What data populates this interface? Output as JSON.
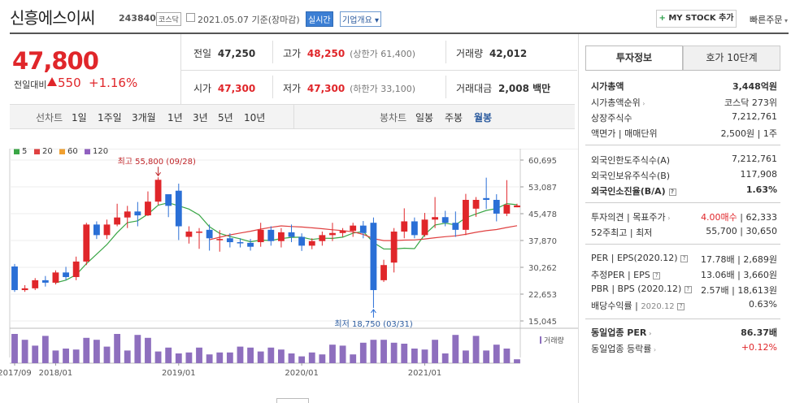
{
  "header": {
    "title": "신흥에스이씨",
    "code": "243840",
    "market": "코스닥",
    "date_text": "2021.05.07  기준(장마감)",
    "realtime": "실시간",
    "company_overview": "기업개요",
    "mystock": "MY STOCK 추가",
    "quick_order": "빠른주문"
  },
  "price": {
    "current": "47,800",
    "change_label": "전일대비",
    "change": "550",
    "change_pct": "+1.16%"
  },
  "stats": {
    "prev_label": "전일",
    "prev": "47,250",
    "high_label": "고가",
    "high": "48,250",
    "upper_limit": "(상한가 61,400)",
    "volume_label": "거래량",
    "volume": "42,012",
    "open_label": "시가",
    "open": "47,300",
    "low_label": "저가",
    "low": "47,300",
    "lower_limit": "(하한가 33,100)",
    "amount_label": "거래대금",
    "amount": "2,008 백만"
  },
  "period": {
    "line_label": "선차트",
    "line_opts": [
      "1일",
      "1주일",
      "3개월",
      "1년",
      "3년",
      "5년",
      "10년"
    ],
    "candle_label": "봉차트",
    "candle_opts": [
      "일봉",
      "주봉",
      "월봉"
    ]
  },
  "tabs": {
    "invest": "투자정보",
    "hoga": "호가 10단계"
  },
  "invest": {
    "mktcap_label": "시가총액",
    "mktcap": "3,448억원",
    "mktcap_rank_label": "시가총액순위",
    "mktcap_rank": "코스닥 273위",
    "shares_label": "상장주식수",
    "shares": "7,212,761",
    "par_label": "액면가",
    "unit_label": "매매단위",
    "par_unit": "2,500원 | 1주",
    "foreign_limit_label": "외국인한도주식수(A)",
    "foreign_limit": "7,212,761",
    "foreign_hold_label": "외국인보유주식수(B)",
    "foreign_hold": "117,908",
    "foreign_ratio_label": "외국인소진율(B/A)",
    "foreign_ratio": "1.63%",
    "opinion_label": "투자의견",
    "target_label": "목표주가",
    "opinion": "4.00매수",
    "target": "62,333",
    "w52_label": "52주최고",
    "w52_low_label": "최저",
    "w52_high": "55,700",
    "w52_low": "30,650",
    "per_label": "PER",
    "eps_label": "EPS(2020.12)",
    "per": "17.78배",
    "eps": "2,689원",
    "fper_label": "추정PER",
    "feps_label": "EPS",
    "fper": "13.06배",
    "feps": "3,660원",
    "pbr_label": "PBR",
    "bps_label": "BPS (2020.12)",
    "pbr": "2.57배",
    "bps": "18,613원",
    "div_label": "배당수익률",
    "div_date": "2020.12",
    "div": "0.63%",
    "sector_per_label": "동일업종 PER",
    "sector_per": "86.37배",
    "sector_chg_label": "동일업종 등락률",
    "sector_chg": "+0.12%"
  },
  "chart_data": {
    "type": "candlestick",
    "period": "월봉",
    "y_ticks": [
      60695,
      53087,
      45478,
      37870,
      30262,
      22653,
      15045
    ],
    "ylim": [
      15045,
      60695
    ],
    "x_labels": [
      "2017/09",
      "2018/01",
      "2019/01",
      "2020/01",
      "2021/01"
    ],
    "ma_legend": [
      {
        "name": "5",
        "color": "#3aa646"
      },
      {
        "name": "20",
        "color": "#e04040"
      },
      {
        "name": "60",
        "color": "#f0a030"
      },
      {
        "name": "120",
        "color": "#9060c0"
      }
    ],
    "high_annotation": "최고 55,800 (09/28)",
    "low_annotation": "최저 18,750 (03/31)",
    "volume_label": "거래량",
    "candles": [
      [
        30500,
        23800,
        31200,
        23300
      ],
      [
        23800,
        24300,
        25200,
        23300
      ],
      [
        24300,
        26600,
        27200,
        23800
      ],
      [
        26600,
        25900,
        27800,
        24800
      ],
      [
        25900,
        28800,
        29400,
        25400
      ],
      [
        28800,
        27500,
        30400,
        26600
      ],
      [
        27500,
        31900,
        33300,
        26600
      ],
      [
        31900,
        42400,
        42900,
        30900
      ],
      [
        42400,
        39400,
        43300,
        38300
      ],
      [
        39400,
        42400,
        43800,
        38300
      ],
      [
        42400,
        44400,
        48300,
        41900
      ],
      [
        44400,
        46100,
        47700,
        41400
      ],
      [
        46100,
        45000,
        48800,
        41900
      ],
      [
        45000,
        48900,
        51800,
        44800
      ],
      [
        48900,
        55100,
        55800,
        48000
      ],
      [
        51000,
        47700,
        50400,
        44500
      ],
      [
        52000,
        41900,
        54000,
        38000
      ],
      [
        38900,
        40400,
        41900,
        37000
      ],
      [
        40400,
        40400,
        41400,
        35500
      ],
      [
        40900,
        38500,
        42400,
        35000
      ],
      [
        38000,
        38300,
        40800,
        34700
      ],
      [
        38500,
        37400,
        39900,
        35900
      ],
      [
        37400,
        37200,
        38500,
        35900
      ],
      [
        37200,
        36100,
        38300,
        35000
      ],
      [
        37400,
        40900,
        42900,
        36100
      ],
      [
        40900,
        37700,
        41900,
        36400
      ],
      [
        37700,
        40200,
        41400,
        35900
      ],
      [
        40200,
        38900,
        42400,
        37400
      ],
      [
        38900,
        36400,
        39900,
        34900
      ],
      [
        36400,
        37700,
        38500,
        35400
      ],
      [
        37700,
        39400,
        40400,
        36400
      ],
      [
        39400,
        40000,
        42900,
        37700
      ],
      [
        40000,
        40600,
        41400,
        38900
      ],
      [
        40600,
        42100,
        42900,
        38900
      ],
      [
        42100,
        40000,
        43400,
        38500
      ],
      [
        42900,
        23800,
        44400,
        18750
      ],
      [
        26600,
        30900,
        32400,
        26100
      ],
      [
        31600,
        40400,
        41400,
        28800
      ],
      [
        40400,
        43300,
        47000,
        38500
      ],
      [
        43300,
        39400,
        44400,
        38500
      ],
      [
        39400,
        43800,
        45700,
        38900
      ],
      [
        43800,
        44500,
        50200,
        41400
      ],
      [
        44500,
        42900,
        46300,
        41900
      ],
      [
        42900,
        40900,
        46100,
        38900
      ],
      [
        40900,
        49400,
        51100,
        39400
      ],
      [
        46900,
        49400,
        50200,
        44600
      ],
      [
        49900,
        49400,
        55700,
        46800
      ],
      [
        49400,
        45500,
        51000,
        43300
      ],
      [
        45500,
        48000,
        55000,
        44800
      ],
      [
        47300,
        47800,
        48300,
        47300
      ]
    ],
    "volumes": [
      30,
      24,
      18,
      28,
      13,
      15,
      14,
      26,
      24,
      17,
      30,
      13,
      29,
      26,
      12,
      16,
      10,
      11,
      16,
      9,
      11,
      11,
      17,
      16,
      12,
      16,
      14,
      10,
      7,
      11,
      9,
      19,
      18,
      9,
      21,
      24,
      24,
      21,
      20,
      15,
      14,
      24,
      10,
      29,
      13,
      28,
      13,
      19,
      15,
      4
    ]
  }
}
